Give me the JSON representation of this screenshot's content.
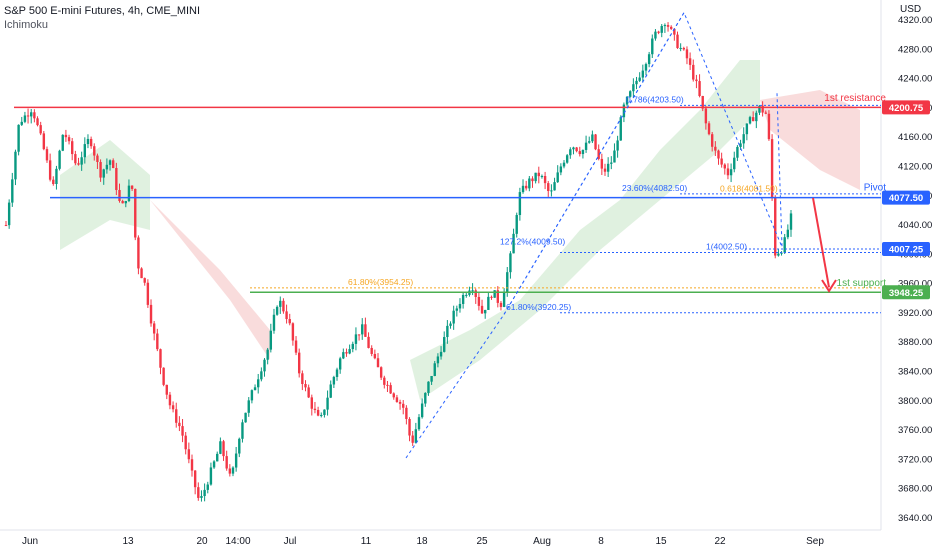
{
  "header": {
    "title": "S&P 500 E-mini Futures, 4h, CME_MINI",
    "indicator": "Ichimoku"
  },
  "colors": {
    "up_candle": "#089981",
    "down_candle": "#f23645",
    "resistance": "#f23645",
    "pivot": "#2962ff",
    "support": "#4caf50",
    "fib_blue": "#2962ff",
    "fib_orange": "#f5a623",
    "cloud_green": "#a5d6a7",
    "cloud_red": "#ef9a9a",
    "arrow": "#f23645"
  },
  "chart_data": {
    "type": "candlestick",
    "ylabel": "USD",
    "ylim": [
      3620,
      4340
    ],
    "price_ticks": [
      "4320.00",
      "4280.00",
      "4240.00",
      "4200.00",
      "4160.00",
      "4120.00",
      "4080.00",
      "4040.00",
      "4000.00",
      "3960.00",
      "3920.00",
      "3880.00",
      "3840.00",
      "3800.00",
      "3760.00",
      "3720.00",
      "3680.00",
      "3640.00"
    ],
    "time_labels": [
      "Jun",
      "13",
      "20",
      "14:00",
      "Jul",
      "11",
      "18",
      "25",
      "Aug",
      "8",
      "15",
      "22",
      "Sep"
    ],
    "price_path": [
      [
        0,
        4040
      ],
      [
        0.05,
        4180
      ],
      [
        0.1,
        4200
      ],
      [
        0.14,
        4150
      ],
      [
        0.18,
        4090
      ],
      [
        0.22,
        4170
      ],
      [
        0.27,
        4120
      ],
      [
        0.32,
        4160
      ],
      [
        0.36,
        4110
      ],
      [
        0.4,
        4130
      ],
      [
        0.44,
        4060
      ],
      [
        0.48,
        4100
      ],
      [
        0.5,
        3990
      ],
      [
        0.53,
        3960
      ],
      [
        0.56,
        3900
      ],
      [
        0.6,
        3830
      ],
      [
        0.63,
        3790
      ],
      [
        0.67,
        3760
      ],
      [
        0.71,
        3700
      ],
      [
        0.74,
        3660
      ],
      [
        0.78,
        3700
      ],
      [
        0.82,
        3740
      ],
      [
        0.86,
        3690
      ],
      [
        0.9,
        3770
      ],
      [
        0.95,
        3820
      ],
      [
        1.0,
        3870
      ],
      [
        1.04,
        3940
      ],
      [
        1.08,
        3910
      ],
      [
        1.12,
        3840
      ],
      [
        1.16,
        3800
      ],
      [
        1.2,
        3770
      ],
      [
        1.24,
        3820
      ],
      [
        1.28,
        3860
      ],
      [
        1.32,
        3880
      ],
      [
        1.36,
        3900
      ],
      [
        1.4,
        3860
      ],
      [
        1.44,
        3830
      ],
      [
        1.48,
        3810
      ],
      [
        1.52,
        3790
      ],
      [
        1.55,
        3740
      ],
      [
        1.58,
        3780
      ],
      [
        1.62,
        3830
      ],
      [
        1.66,
        3870
      ],
      [
        1.7,
        3910
      ],
      [
        1.74,
        3940
      ],
      [
        1.78,
        3960
      ],
      [
        1.82,
        3920
      ],
      [
        1.86,
        3950
      ],
      [
        1.89,
        3930
      ],
      [
        1.93,
        4000
      ],
      [
        1.96,
        4080
      ],
      [
        2.0,
        4100
      ],
      [
        2.04,
        4110
      ],
      [
        2.08,
        4080
      ],
      [
        2.12,
        4120
      ],
      [
        2.16,
        4150
      ],
      [
        2.2,
        4140
      ],
      [
        2.24,
        4160
      ],
      [
        2.28,
        4110
      ],
      [
        2.32,
        4130
      ],
      [
        2.36,
        4200
      ],
      [
        2.4,
        4230
      ],
      [
        2.44,
        4260
      ],
      [
        2.48,
        4300
      ],
      [
        2.52,
        4320
      ],
      [
        2.56,
        4290
      ],
      [
        2.6,
        4270
      ],
      [
        2.64,
        4230
      ],
      [
        2.68,
        4170
      ],
      [
        2.72,
        4130
      ],
      [
        2.76,
        4110
      ],
      [
        2.8,
        4150
      ],
      [
        2.84,
        4180
      ],
      [
        2.88,
        4200
      ],
      [
        2.91,
        4190
      ],
      [
        2.94,
        4000
      ],
      [
        2.97,
        4010
      ],
      [
        3.0,
        4050
      ]
    ],
    "levels": [
      {
        "name": "1st resistance",
        "value": 4200.75,
        "label": "4200.75"
      },
      {
        "name": "Pivot",
        "value": 4077.5,
        "label": "4077.50"
      },
      {
        "name": "1st support",
        "value": 3948.25,
        "label": "3948.25"
      },
      {
        "name": "",
        "value": 4007.25,
        "label": "4007.25"
      }
    ],
    "annotations": [
      {
        "text": "1st resistance",
        "value": 4205
      },
      {
        "text": "Pivot",
        "value": 4083
      },
      {
        "text": "1st support",
        "value": 3953
      },
      {
        "text": "23.60%(4082.50)",
        "value": 4082.5
      },
      {
        "text": "0.618(4081.50)",
        "value": 4081.5
      },
      {
        "text": "127.2%(4009.50)",
        "value": 4009.5
      },
      {
        "text": "1(4002.50)",
        "value": 4002.5
      },
      {
        "text": "61.80%(3954.25)",
        "value": 3954.25
      },
      {
        "text": "61.80%(3920.25)",
        "value": 3920.25
      },
      {
        "text": "0.786(4203.50)",
        "value": 4203.5
      }
    ]
  }
}
